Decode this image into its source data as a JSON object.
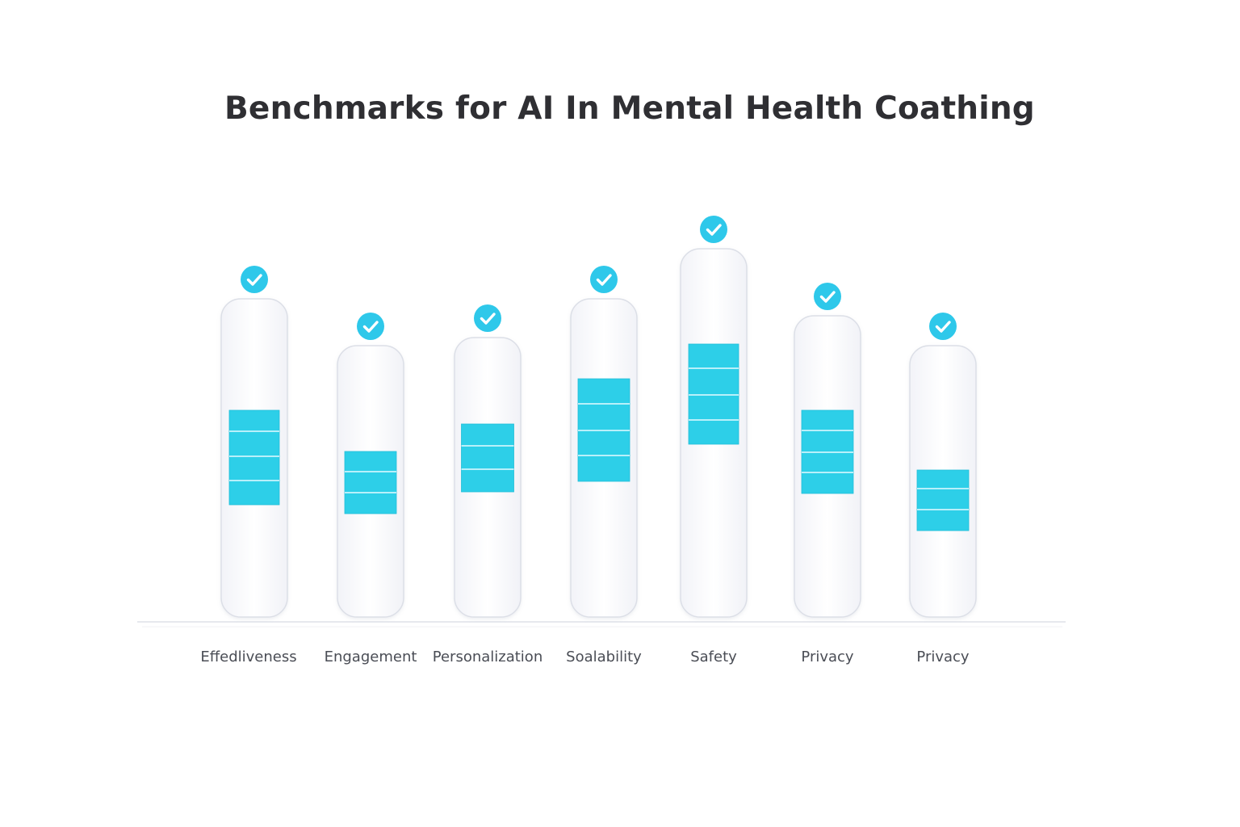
{
  "chart_data": {
    "type": "bar",
    "title": "Benchmarks for AI In Mental Health Coathing",
    "categories": [
      "Effedliveness",
      "Engagement",
      "Personalization",
      "Soalability",
      "Safety",
      "Privacy",
      "Privacy"
    ],
    "values": [
      4,
      3,
      3,
      4,
      4,
      4,
      3
    ],
    "checked": [
      true,
      true,
      true,
      true,
      true,
      true,
      true
    ],
    "grid": false,
    "colors": {
      "segment": "#2dcfe8",
      "segment_line": "#e6fbff",
      "check_badge": "#2ec8ea",
      "pill_border": "#dcdfe7",
      "pill_fill": "#fbfbfe",
      "baseline": "#e6e8ee"
    },
    "icons": {
      "badge": "checkmark-icon"
    }
  }
}
